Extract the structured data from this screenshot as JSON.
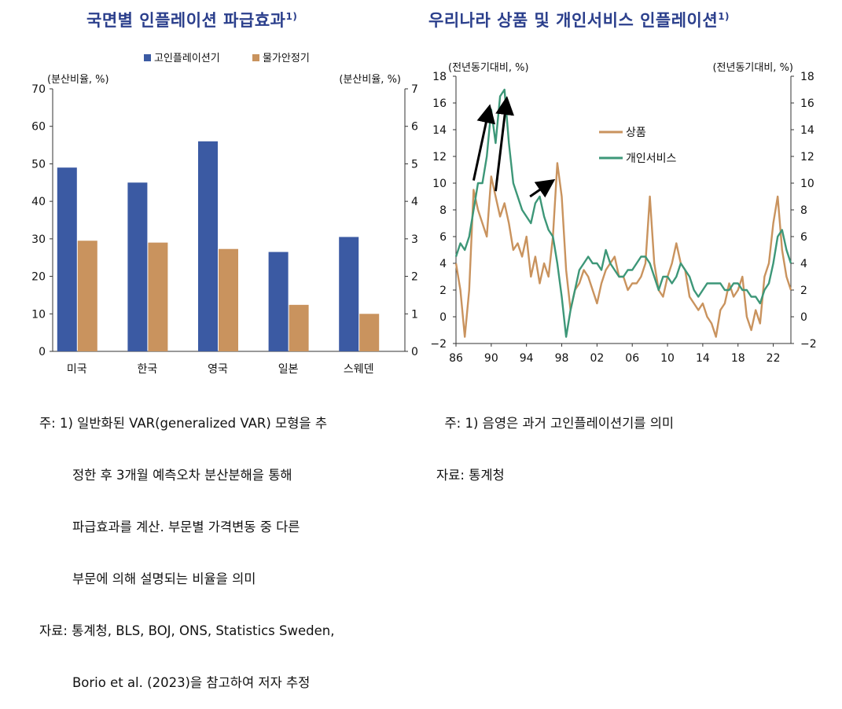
{
  "left_panel": {
    "title": "국면별 인플레이션 파급효과",
    "title_sup": "1)",
    "notes": [
      "주: 1) 일반화된 VAR(generalized VAR) 모형을 추",
      "        정한 후 3개월 예측오차 분산분해을 통해",
      "        파급효과를 계산. 부문별 가격변동 중 다른",
      "        부문에 의해 설명되는 비율을 의미",
      "자료: 통계청, BLS, BOJ, ONS, Statistics Sweden,",
      "        Borio et al. (2023)을 참고하여 저자 추정"
    ]
  },
  "right_panel": {
    "title": "우리나라 상품 및 개인서비스 인플레이션",
    "title_sup": "1)",
    "notes": [
      "  주: 1) 음영은 과거 고인플레이션기를 의미",
      "자료: 통계청"
    ]
  },
  "chart_data": [
    {
      "type": "bar",
      "categories": [
        "미국",
        "한국",
        "영국",
        "일본",
        "스웨덴"
      ],
      "series": [
        {
          "name": "고인플레이션기",
          "color": "#3b5aa3",
          "values": [
            49,
            45,
            56,
            26.5,
            30.5
          ]
        },
        {
          "name": "물가안정기",
          "color": "#c9935e",
          "values": [
            29.5,
            29,
            27.3,
            12.4,
            10
          ]
        }
      ],
      "ylabel_left": "(분산비율, %)",
      "ylabel_right": "(분산비율, %)",
      "ylim_left": [
        0,
        70
      ],
      "ylim_right": [
        0,
        7
      ],
      "yticks_left": [
        "0",
        "10",
        "20",
        "30",
        "40",
        "50",
        "60",
        "70"
      ],
      "yticks_right": [
        "0",
        "1",
        "2",
        "3",
        "4",
        "5",
        "6",
        "7"
      ],
      "legend": "top-center"
    },
    {
      "type": "line",
      "ylabel_left": "(전년동기대비, %)",
      "ylabel_right": "(전년동기대비, %)",
      "ylim": [
        -2,
        18
      ],
      "xlim": [
        1986,
        2024
      ],
      "yticks_left": [
        "−2",
        "0",
        "2",
        "4",
        "6",
        "8",
        "10",
        "12",
        "14",
        "16",
        "18"
      ],
      "yticks_right": [
        "−2",
        "0",
        "2",
        "4",
        "6",
        "8",
        "10",
        "12",
        "14",
        "16",
        "18"
      ],
      "xticks": [
        "86",
        "90",
        "94",
        "98",
        "02",
        "06",
        "10",
        "14",
        "18",
        "22"
      ],
      "legend": "top-center",
      "series": [
        {
          "name": "상품",
          "color": "#c9935e",
          "x": [
            1986,
            1986.5,
            1987,
            1987.5,
            1988,
            1988.5,
            1989,
            1989.5,
            1990,
            1990.5,
            1991,
            1991.5,
            1992,
            1992.5,
            1993,
            1993.5,
            1994,
            1994.5,
            1995,
            1995.5,
            1996,
            1996.5,
            1997,
            1997.5,
            1998,
            1998.5,
            1999,
            1999.5,
            2000,
            2000.5,
            2001,
            2001.5,
            2002,
            2002.5,
            2003,
            2003.5,
            2004,
            2004.5,
            2005,
            2005.5,
            2006,
            2006.5,
            2007,
            2007.5,
            2008,
            2008.5,
            2009,
            2009.5,
            2010,
            2010.5,
            2011,
            2011.5,
            2012,
            2012.5,
            2013,
            2013.5,
            2014,
            2014.5,
            2015,
            2015.5,
            2016,
            2016.5,
            2017,
            2017.5,
            2018,
            2018.5,
            2019,
            2019.5,
            2020,
            2020.5,
            2021,
            2021.5,
            2022,
            2022.5,
            2023,
            2023.5,
            2024
          ],
          "values": [
            4,
            2,
            -1.5,
            2,
            9.5,
            8,
            7,
            6,
            10.5,
            9,
            7.5,
            8.5,
            7,
            5,
            5.5,
            4.5,
            6,
            3,
            4.5,
            2.5,
            4,
            3,
            6,
            11.5,
            9,
            3.5,
            0.5,
            2,
            2.5,
            3.5,
            3,
            2,
            1,
            2.5,
            3.5,
            4,
            4.5,
            3,
            3,
            2,
            2.5,
            2.5,
            3,
            4,
            9,
            4,
            2,
            1.5,
            3,
            4,
            5.5,
            4,
            3.5,
            1.5,
            1,
            0.5,
            1,
            0,
            -0.5,
            -1.5,
            0.5,
            1,
            2.5,
            1.5,
            2,
            3,
            0,
            -1,
            0.5,
            -0.5,
            3,
            4,
            7,
            9,
            5,
            3,
            2
          ]
        },
        {
          "name": "개인서비스",
          "color": "#3d9778",
          "x": [
            1986,
            1986.5,
            1987,
            1987.5,
            1988,
            1988.5,
            1989,
            1989.5,
            1990,
            1990.5,
            1991,
            1991.5,
            1992,
            1992.5,
            1993,
            1993.5,
            1994,
            1994.5,
            1995,
            1995.5,
            1996,
            1996.5,
            1997,
            1997.5,
            1998,
            1998.5,
            1999,
            1999.5,
            2000,
            2000.5,
            2001,
            2001.5,
            2002,
            2002.5,
            2003,
            2003.5,
            2004,
            2004.5,
            2005,
            2005.5,
            2006,
            2006.5,
            2007,
            2007.5,
            2008,
            2008.5,
            2009,
            2009.5,
            2010,
            2010.5,
            2011,
            2011.5,
            2012,
            2012.5,
            2013,
            2013.5,
            2014,
            2014.5,
            2015,
            2015.5,
            2016,
            2016.5,
            2017,
            2017.5,
            2018,
            2018.5,
            2019,
            2019.5,
            2020,
            2020.5,
            2021,
            2021.5,
            2022,
            2022.5,
            2023,
            2023.5,
            2024
          ],
          "values": [
            4.5,
            5.5,
            5,
            6,
            8,
            10,
            10,
            12,
            15.5,
            13,
            16.5,
            17,
            13,
            10,
            9,
            8,
            7.5,
            7,
            8.5,
            9,
            7.5,
            6.5,
            6,
            4,
            1.5,
            -1.5,
            0.5,
            2,
            3.5,
            4,
            4.5,
            4,
            4,
            3.5,
            5,
            4,
            3.5,
            3,
            3,
            3.5,
            3.5,
            4,
            4.5,
            4.5,
            4,
            3,
            2,
            3,
            3,
            2.5,
            3,
            4,
            3.5,
            3,
            2,
            1.5,
            2,
            2.5,
            2.5,
            2.5,
            2.5,
            2,
            2,
            2.5,
            2.5,
            2,
            2,
            1.5,
            1.5,
            1,
            2,
            2.5,
            4,
            6,
            6.5,
            5,
            4
          ]
        }
      ]
    }
  ]
}
